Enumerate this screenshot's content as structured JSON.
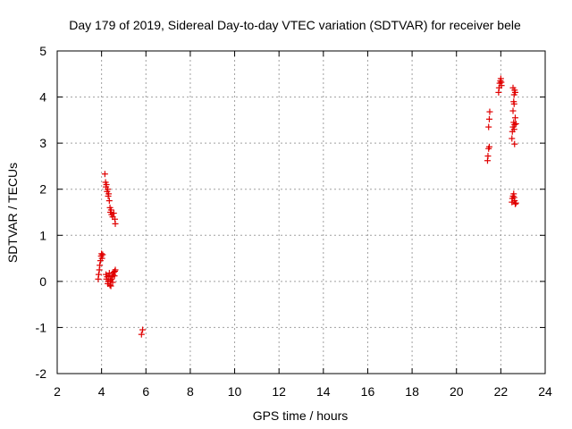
{
  "chart_data": {
    "type": "scatter",
    "title": "Day 179 of 2019, Sidereal Day-to-day VTEC variation (SDTVAR) for receiver bele",
    "xlabel": "GPS time / hours",
    "ylabel": "SDTVAR / TECUs",
    "xlim": [
      2,
      24
    ],
    "ylim": [
      -2,
      5
    ],
    "xticks": [
      "2",
      "4",
      "6",
      "8",
      "10",
      "12",
      "14",
      "16",
      "18",
      "20",
      "22",
      "24"
    ],
    "yticks": [
      "-2",
      "-1",
      "0",
      "1",
      "2",
      "3",
      "4",
      "5"
    ],
    "grid": true,
    "marker": "+",
    "color": "#e00000",
    "series": [
      {
        "name": "SDTVAR",
        "points": [
          [
            3.85,
            0.05
          ],
          [
            3.87,
            0.15
          ],
          [
            3.9,
            0.25
          ],
          [
            3.92,
            0.35
          ],
          [
            3.95,
            0.45
          ],
          [
            3.98,
            0.55
          ],
          [
            4.0,
            0.6
          ],
          [
            4.02,
            0.5
          ],
          [
            4.05,
            0.58
          ],
          [
            4.15,
            2.33
          ],
          [
            4.18,
            2.15
          ],
          [
            4.2,
            2.05
          ],
          [
            4.22,
            2.1
          ],
          [
            4.25,
            1.95
          ],
          [
            4.28,
            2.0
          ],
          [
            4.3,
            1.85
          ],
          [
            4.32,
            1.9
          ],
          [
            4.35,
            1.75
          ],
          [
            4.38,
            1.6
          ],
          [
            4.4,
            1.5
          ],
          [
            4.43,
            1.55
          ],
          [
            4.45,
            1.45
          ],
          [
            4.5,
            1.4
          ],
          [
            4.55,
            1.48
          ],
          [
            4.6,
            1.35
          ],
          [
            4.62,
            1.25
          ],
          [
            4.2,
            0.15
          ],
          [
            4.22,
            0.05
          ],
          [
            4.25,
            0.1
          ],
          [
            4.28,
            -0.05
          ],
          [
            4.3,
            0.0
          ],
          [
            4.33,
            0.12
          ],
          [
            4.35,
            0.18
          ],
          [
            4.38,
            -0.08
          ],
          [
            4.4,
            0.02
          ],
          [
            4.42,
            -0.1
          ],
          [
            4.45,
            0.05
          ],
          [
            4.48,
            0.1
          ],
          [
            4.5,
            -0.02
          ],
          [
            4.52,
            0.15
          ],
          [
            4.55,
            0.2
          ],
          [
            4.58,
            0.12
          ],
          [
            4.6,
            0.22
          ],
          [
            4.62,
            0.25
          ],
          [
            5.8,
            -1.15
          ],
          [
            5.85,
            -1.05
          ],
          [
            21.4,
            2.62
          ],
          [
            21.42,
            2.72
          ],
          [
            21.45,
            2.88
          ],
          [
            21.48,
            2.92
          ],
          [
            21.45,
            3.35
          ],
          [
            21.48,
            3.52
          ],
          [
            21.5,
            3.68
          ],
          [
            21.9,
            4.1
          ],
          [
            21.92,
            4.2
          ],
          [
            21.95,
            4.3
          ],
          [
            21.98,
            4.35
          ],
          [
            22.0,
            4.4
          ],
          [
            22.02,
            4.32
          ],
          [
            22.03,
            4.25
          ],
          [
            22.5,
            1.72
          ],
          [
            22.52,
            1.8
          ],
          [
            22.55,
            1.85
          ],
          [
            22.58,
            1.9
          ],
          [
            22.6,
            1.82
          ],
          [
            22.62,
            1.75
          ],
          [
            22.65,
            1.68
          ],
          [
            22.68,
            1.7
          ],
          [
            22.5,
            3.1
          ],
          [
            22.52,
            3.25
          ],
          [
            22.55,
            3.35
          ],
          [
            22.58,
            3.45
          ],
          [
            22.6,
            3.3
          ],
          [
            22.62,
            3.4
          ],
          [
            22.65,
            3.55
          ],
          [
            22.68,
            3.42
          ],
          [
            22.55,
            3.7
          ],
          [
            22.58,
            3.9
          ],
          [
            22.6,
            4.05
          ],
          [
            22.62,
            4.15
          ],
          [
            22.65,
            4.1
          ],
          [
            22.6,
            3.85
          ],
          [
            22.62,
            2.98
          ],
          [
            22.55,
            4.2
          ]
        ]
      }
    ]
  }
}
